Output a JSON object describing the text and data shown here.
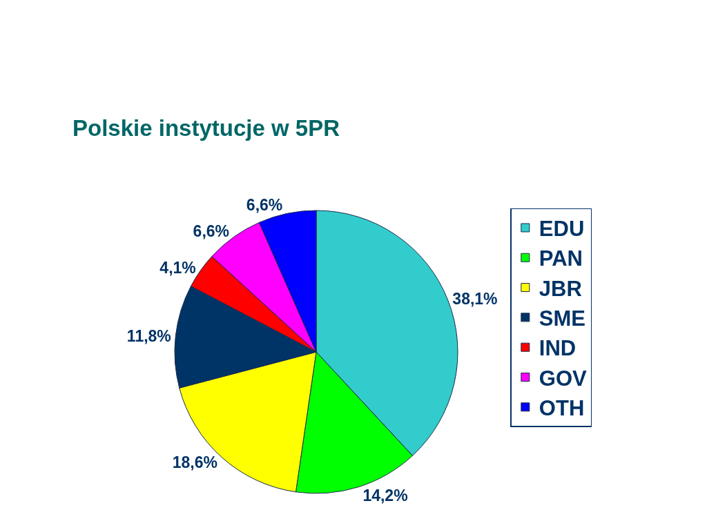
{
  "chart_data": {
    "type": "pie",
    "title": "Polskie instytucje w 5PR",
    "categories": [
      "EDU",
      "PAN",
      "JBR",
      "SME",
      "IND",
      "GOV",
      "OTH"
    ],
    "values": [
      38.1,
      14.2,
      18.6,
      11.8,
      4.1,
      6.6,
      6.6
    ],
    "colors": [
      "#33cccc",
      "#00ff00",
      "#ffff00",
      "#003366",
      "#ff0000",
      "#ff00ff",
      "#0000ff"
    ],
    "value_labels": [
      "38,1%",
      "14,2%",
      "18,6%",
      "11,8%",
      "4,1%",
      "6,6%",
      "6,6%"
    ],
    "legend": "right"
  }
}
